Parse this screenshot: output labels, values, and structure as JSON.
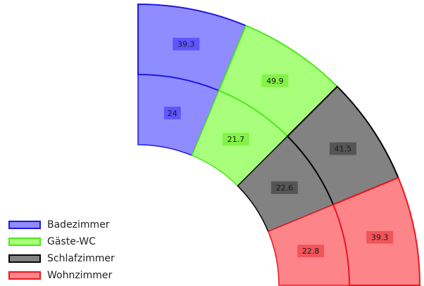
{
  "chart_data": {
    "type": "polar-stacked-bar",
    "categories": [
      "Badezimmer",
      "Gäste-WC",
      "Schlafzimmer",
      "Wohnzimmer"
    ],
    "series": [
      {
        "values": [
          24,
          21.7,
          22.6,
          22.8
        ]
      },
      {
        "values": [
          39.3,
          49.9,
          41.5,
          39.3
        ]
      }
    ],
    "colors": {
      "Badezimmer": {
        "fill": "#8f8cff",
        "stroke": "#1f18e0",
        "label_bg": "#5f55ff"
      },
      "Gäste-WC": {
        "fill": "#a7ff7c",
        "stroke": "#4ee81a",
        "label_bg": "#84f347"
      },
      "Schlafzimmer": {
        "fill": "#828282",
        "stroke": "#050505",
        "label_bg": "#555555"
      },
      "Wohnzimmer": {
        "fill": "#fd8589",
        "stroke": "#ec1620",
        "label_bg": "#f25459"
      }
    },
    "angular_range_deg": [
      0,
      90
    ],
    "legend_position": "bottom-left",
    "grid": false
  }
}
